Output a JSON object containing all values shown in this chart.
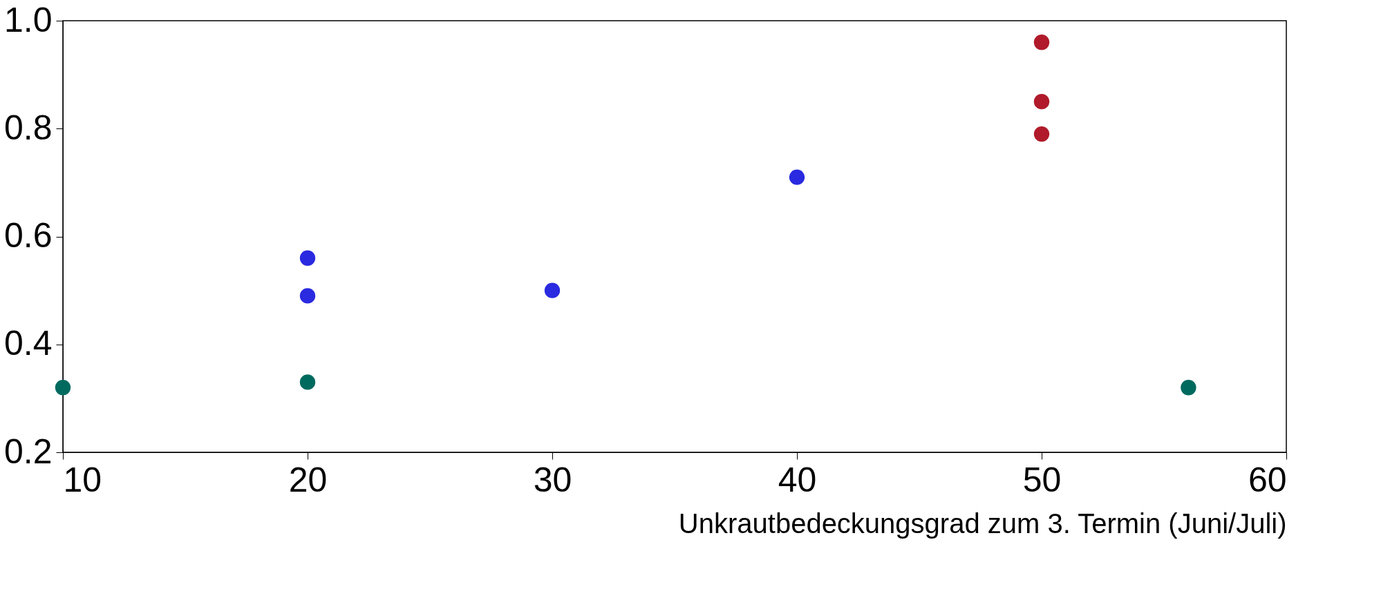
{
  "chart_data": {
    "type": "scatter",
    "xlabel": "Unkrautbedeckungsgrad zum 3. Termin (Juni/Juli)",
    "xlim": [
      10,
      60
    ],
    "xticks": [
      10,
      20,
      30,
      40,
      50,
      60
    ],
    "ylim": [
      0.2,
      1.0
    ],
    "yticks": [
      0.2,
      0.4,
      0.6,
      0.8,
      {
        "value": 1.0,
        "label": "1.0"
      }
    ],
    "grid": false,
    "marker": "circle",
    "series": [
      {
        "color": "#006a5f",
        "x": [
          10,
          20,
          56
        ],
        "values": [
          0.32,
          0.33,
          0.32
        ]
      },
      {
        "color": "#2a2ae0",
        "x": [
          20,
          20,
          30,
          40
        ],
        "values": [
          0.56,
          0.49,
          0.5,
          0.71
        ]
      },
      {
        "color": "#b01a2a",
        "x": [
          50,
          50,
          50
        ],
        "values": [
          0.96,
          0.85,
          0.79
        ]
      }
    ]
  }
}
